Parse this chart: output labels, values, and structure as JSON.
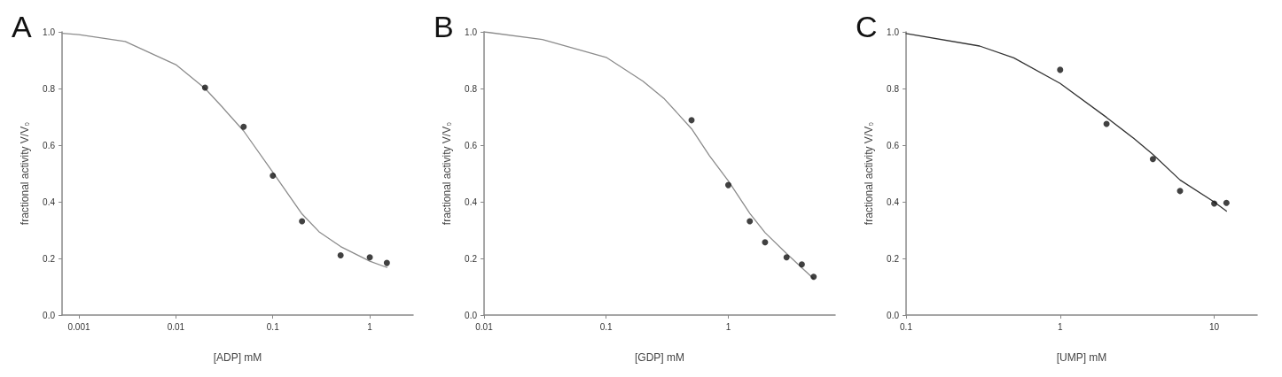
{
  "chart_data": [
    {
      "type": "scatter",
      "title": "A",
      "xlabel": "[ADP] mM",
      "ylabel": "fractional activity V/V₀",
      "log": "x",
      "xlim": [
        0.00067,
        2.8
      ],
      "xticks": [
        0.001,
        0.01,
        0.1,
        1
      ],
      "ylim": [
        0,
        1
      ],
      "yticks": [
        {
          "value": 0,
          "label": "0.0"
        },
        {
          "value": 0.2,
          "label": "0.2"
        },
        {
          "value": 0.4,
          "label": "0.4"
        },
        {
          "value": 0.6,
          "label": "0.6"
        },
        {
          "value": 0.8,
          "label": "0.8"
        },
        {
          "value": 1,
          "label": "1.0"
        }
      ],
      "series": [
        {
          "type": "line",
          "color": "#8c8c8c",
          "marker": "none",
          "line_style": "solid",
          "x": [
            0.00067,
            0.001,
            0.003,
            0.01,
            0.02,
            0.03,
            0.05,
            0.1,
            0.2,
            0.3,
            0.5,
            1,
            1.5
          ],
          "values": [
            0.995,
            0.99,
            0.966,
            0.884,
            0.8,
            0.735,
            0.65,
            0.504,
            0.357,
            0.294,
            0.242,
            0.19,
            0.168
          ]
        },
        {
          "color": "#111111",
          "marker": "circle",
          "x": [
            0.02,
            0.05,
            0.1,
            0.2,
            0.5,
            1,
            1.5
          ],
          "values": [
            0.803,
            0.665,
            0.492,
            0.331,
            0.211,
            0.204,
            0.184
          ]
        }
      ]
    },
    {
      "type": "scatter",
      "title": "B",
      "xlabel": "[GDP] mM",
      "ylabel": "fractional activity V/V₀",
      "log": "x",
      "xlim": [
        0.01,
        7.5
      ],
      "xticks": [
        0.01,
        0.1,
        1
      ],
      "ylim": [
        0,
        1
      ],
      "yticks": [
        {
          "value": 0,
          "label": "0.0"
        },
        {
          "value": 0.2,
          "label": "0.2"
        },
        {
          "value": 0.4,
          "label": "0.4"
        },
        {
          "value": 0.6,
          "label": "0.6"
        },
        {
          "value": 0.8,
          "label": "0.8"
        },
        {
          "value": 1,
          "label": "1.0"
        }
      ],
      "series": [
        {
          "type": "line",
          "color": "#8c8c8c",
          "marker": "none",
          "line_style": "solid",
          "x": [
            0.01,
            0.03,
            0.1,
            0.2,
            0.3,
            0.5,
            0.7,
            1,
            1.5,
            2,
            3,
            5
          ],
          "values": [
            1.0,
            0.973,
            0.91,
            0.826,
            0.763,
            0.658,
            0.563,
            0.474,
            0.359,
            0.291,
            0.217,
            0.128
          ]
        },
        {
          "color": "#111111",
          "marker": "circle",
          "x": [
            0.5,
            1,
            1.5,
            2,
            3,
            4,
            5
          ],
          "values": [
            0.688,
            0.459,
            0.331,
            0.257,
            0.204,
            0.179,
            0.135
          ]
        }
      ]
    },
    {
      "type": "scatter",
      "title": "C",
      "xlabel": "[UMP] mM",
      "ylabel": "fractional activity V/V₀",
      "log": "x",
      "xlim": [
        0.1,
        19
      ],
      "xticks": [
        0.1,
        1,
        10
      ],
      "ylim": [
        0,
        1
      ],
      "yticks": [
        {
          "value": 0,
          "label": "0.0"
        },
        {
          "value": 0.2,
          "label": "0.2"
        },
        {
          "value": 0.4,
          "label": "0.4"
        },
        {
          "value": 0.6,
          "label": "0.6"
        },
        {
          "value": 0.8,
          "label": "0.8"
        },
        {
          "value": 1,
          "label": "1.0"
        }
      ],
      "series": [
        {
          "type": "line",
          "color": "#333333",
          "marker": "none",
          "line_style": "solid",
          "x": [
            0.1,
            0.3,
            0.5,
            1,
            2,
            3,
            4,
            6,
            10,
            12
          ],
          "values": [
            0.994,
            0.95,
            0.908,
            0.818,
            0.698,
            0.624,
            0.567,
            0.477,
            0.399,
            0.367
          ]
        },
        {
          "color": "#111111",
          "marker": "circle",
          "x": [
            1,
            2,
            4,
            6,
            10,
            12
          ],
          "values": [
            0.866,
            0.675,
            0.551,
            0.438,
            0.394,
            0.396
          ]
        }
      ]
    }
  ]
}
